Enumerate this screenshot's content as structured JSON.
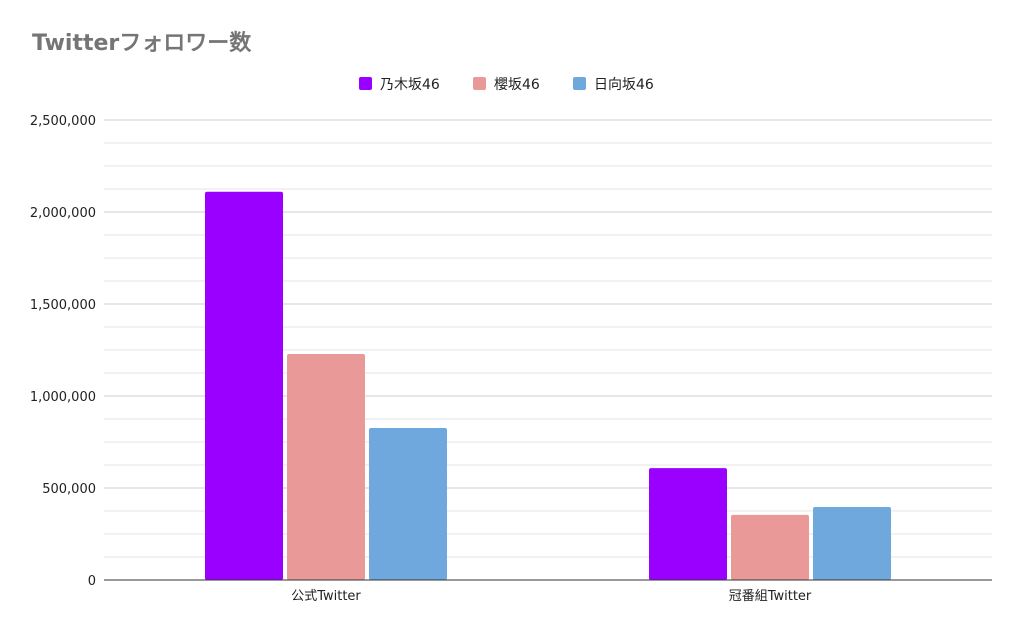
{
  "chart_data": {
    "type": "bar",
    "title": "Twitterフォロワー数",
    "xlabel": "",
    "ylabel": "",
    "categories": [
      "公式Twitter",
      "冠番組Twitter"
    ],
    "series": [
      {
        "name": "乃木坂46",
        "color": "#9900ff",
        "values": [
          2110000,
          608000
        ]
      },
      {
        "name": "櫻坂46",
        "color": "#ea9999",
        "values": [
          1228000,
          354000
        ]
      },
      {
        "name": "日向坂46",
        "color": "#6fa8dc",
        "values": [
          826000,
          397000
        ]
      }
    ],
    "ylim": [
      0,
      2500000
    ],
    "yticks": [
      0,
      500000,
      1000000,
      1500000,
      2000000,
      2500000
    ],
    "ytick_labels": [
      "0",
      "500,000",
      "1,000,000",
      "1,500,000",
      "2,000,000",
      "2,500,000"
    ],
    "grid": true,
    "legend_position": "top-center"
  }
}
